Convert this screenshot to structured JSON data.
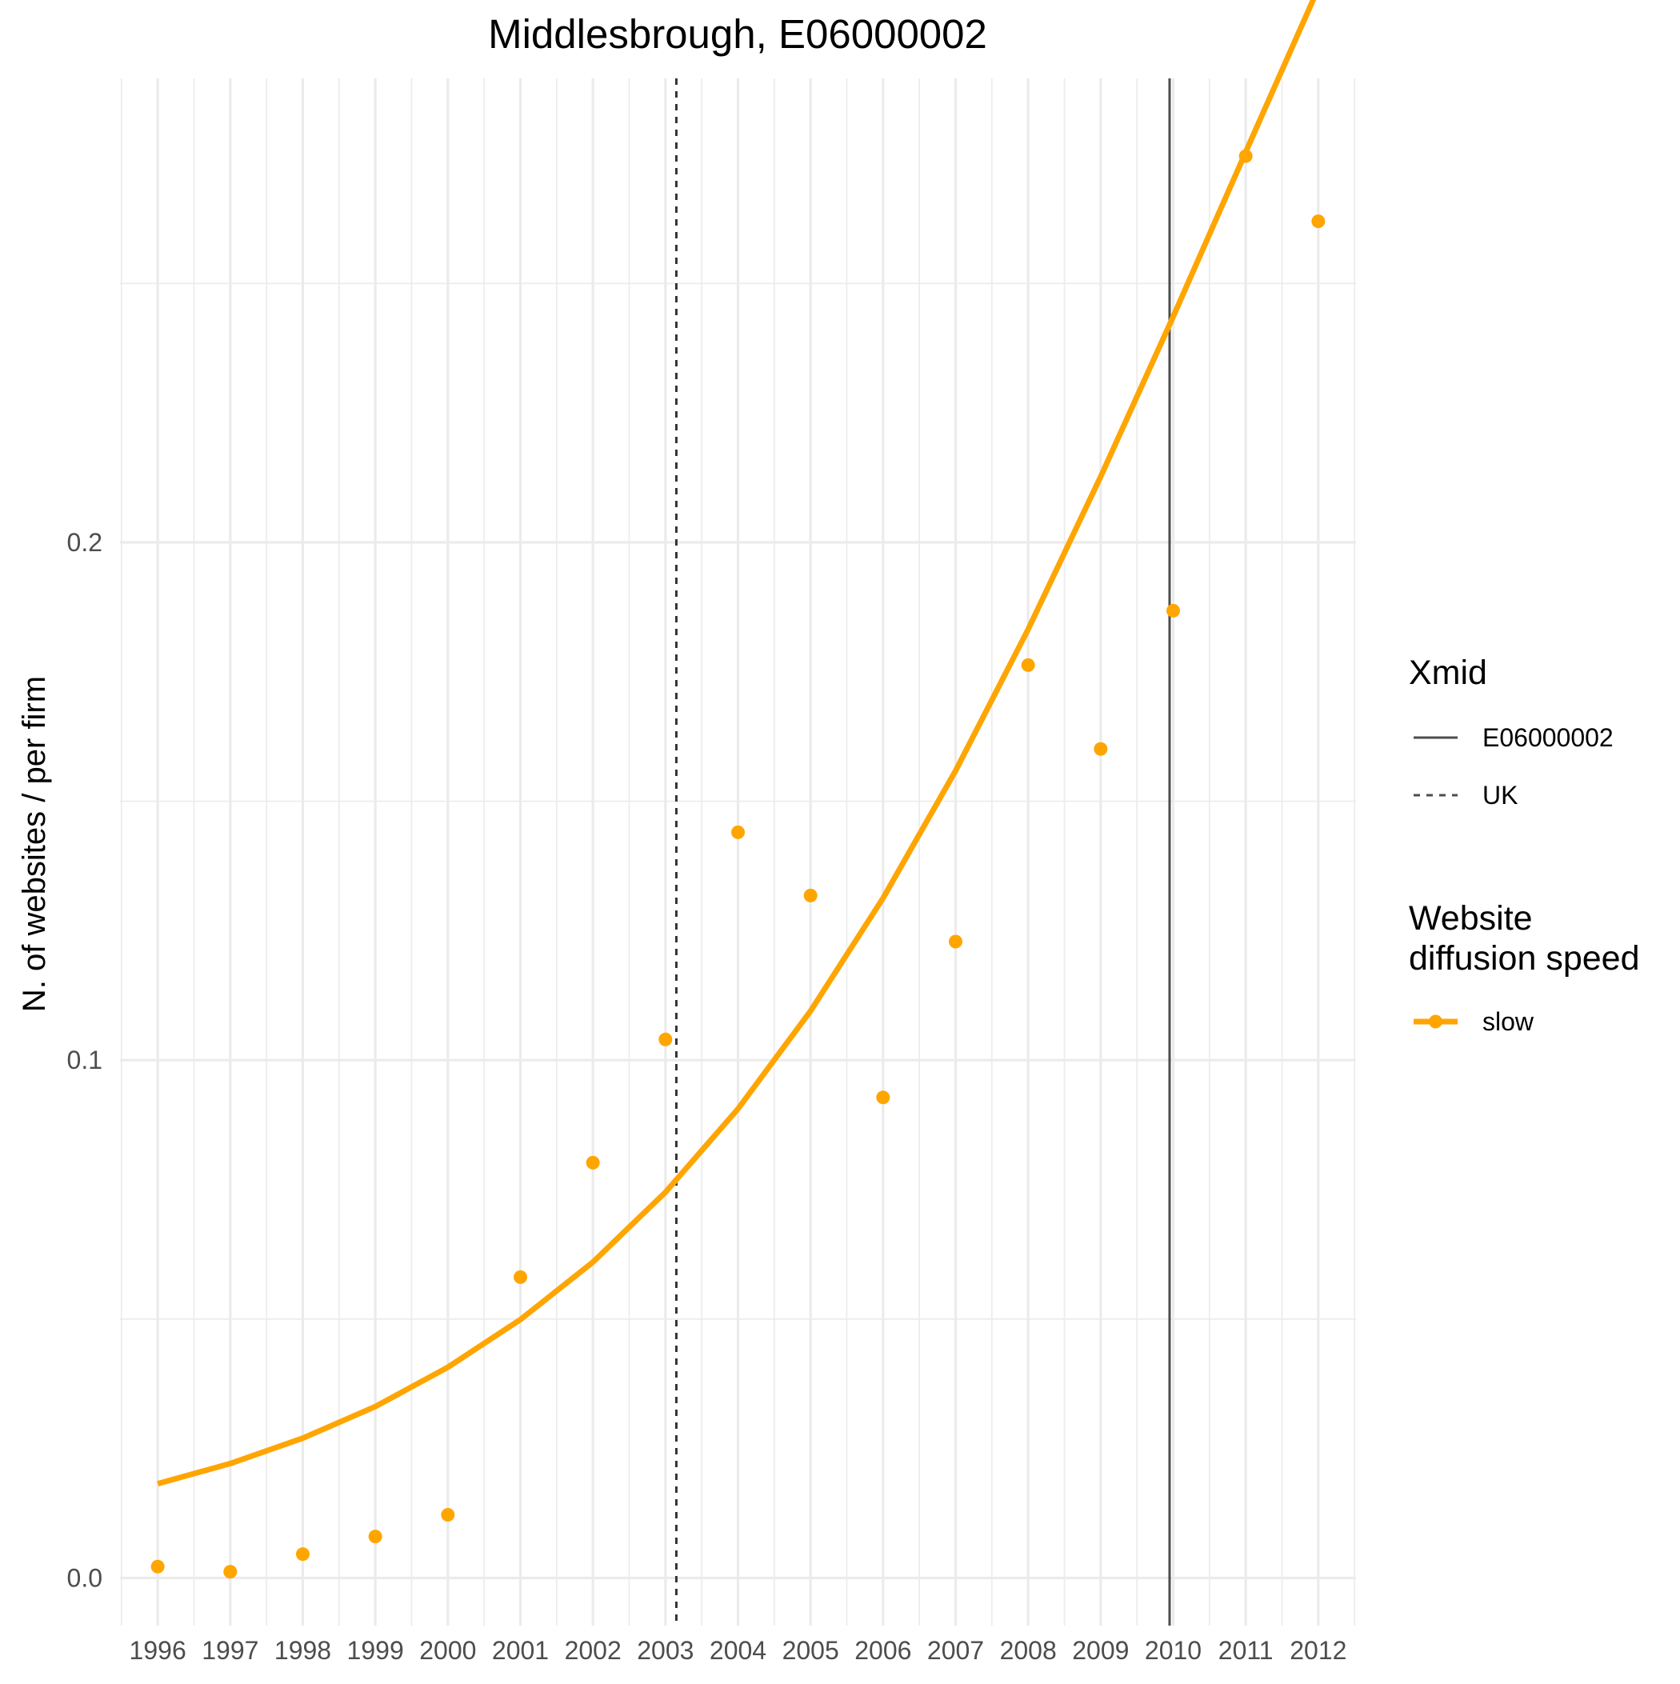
{
  "chart_data": {
    "type": "line",
    "title": "Middlesbrough, E06000002",
    "xlabel": "",
    "ylabel": "N. of websites / per firm",
    "x": [
      1996,
      1997,
      1998,
      1999,
      2000,
      2001,
      2002,
      2003,
      2004,
      2005,
      2006,
      2007,
      2008,
      2009,
      2010,
      2011,
      2012
    ],
    "x_tick_labels": [
      "1996",
      "1997",
      "1998",
      "1999",
      "2000",
      "2001",
      "2002",
      "2003",
      "2004",
      "2005",
      "2006",
      "2007",
      "2008",
      "2009",
      "2010",
      "2011",
      "2012"
    ],
    "y_ticks": [
      0.0,
      0.1,
      0.2
    ],
    "y_tick_labels": [
      "0.0",
      "0.1",
      "0.2"
    ],
    "xlim": [
      1995.48,
      2012.52
    ],
    "ylim": [
      -0.0092,
      0.2896
    ],
    "grid": true,
    "legend_position": "right",
    "series": [
      {
        "name": "slow",
        "color": "#FFA500",
        "points": [
          0.0022,
          0.0012,
          0.0046,
          0.008,
          0.0122,
          0.0581,
          0.0802,
          0.104,
          0.144,
          0.1318,
          0.0928,
          0.1229,
          0.1763,
          0.1601,
          0.1868,
          0.2746,
          0.262
        ],
        "fit": [
          0.0182,
          0.0221,
          0.027,
          0.0331,
          0.0407,
          0.0499,
          0.061,
          0.0745,
          0.0906,
          0.1095,
          0.1313,
          0.1559,
          0.1832,
          0.2127,
          0.2436,
          0.2754,
          0.307
        ]
      }
    ],
    "vlines": [
      {
        "group": "E06000002",
        "x": 2009.95,
        "linetype": "solid",
        "color": "#4d4d4d"
      },
      {
        "group": "UK",
        "x": 2003.15,
        "linetype": "dashed",
        "color": "#333333"
      }
    ],
    "legend": {
      "xmid_title": "Xmid",
      "xmid_entries": [
        {
          "label": "E06000002",
          "linetype": "solid"
        },
        {
          "label": "UK",
          "linetype": "dashed"
        }
      ],
      "speed_title_line1": "Website",
      "speed_title_line2": "diffusion speed",
      "speed_entries": [
        {
          "label": "slow",
          "color": "#FFA500"
        }
      ]
    }
  }
}
